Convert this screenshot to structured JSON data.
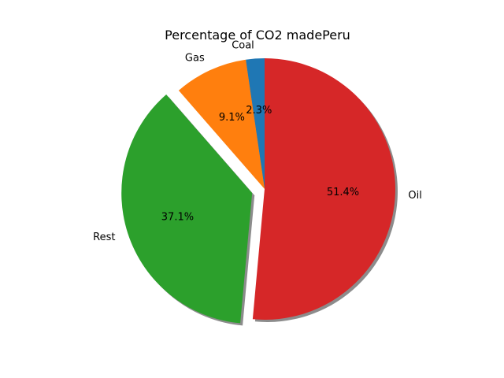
{
  "chart_data": {
    "type": "pie",
    "title": "Percentage of CO2 madePeru",
    "categories": [
      "Coal",
      "Gas",
      "Rest",
      "Oil"
    ],
    "values": [
      2.3,
      9.1,
      37.1,
      51.4
    ],
    "percent_labels": [
      "2.3%",
      "9.1%",
      "37.1%",
      "51.4%"
    ],
    "colors": [
      "#1f77b4",
      "#ff7f0e",
      "#2ca02c",
      "#d62728"
    ],
    "start_angle_deg": 90,
    "direction": "counterclockwise",
    "exploded": [
      "Rest"
    ],
    "shadow": true
  }
}
